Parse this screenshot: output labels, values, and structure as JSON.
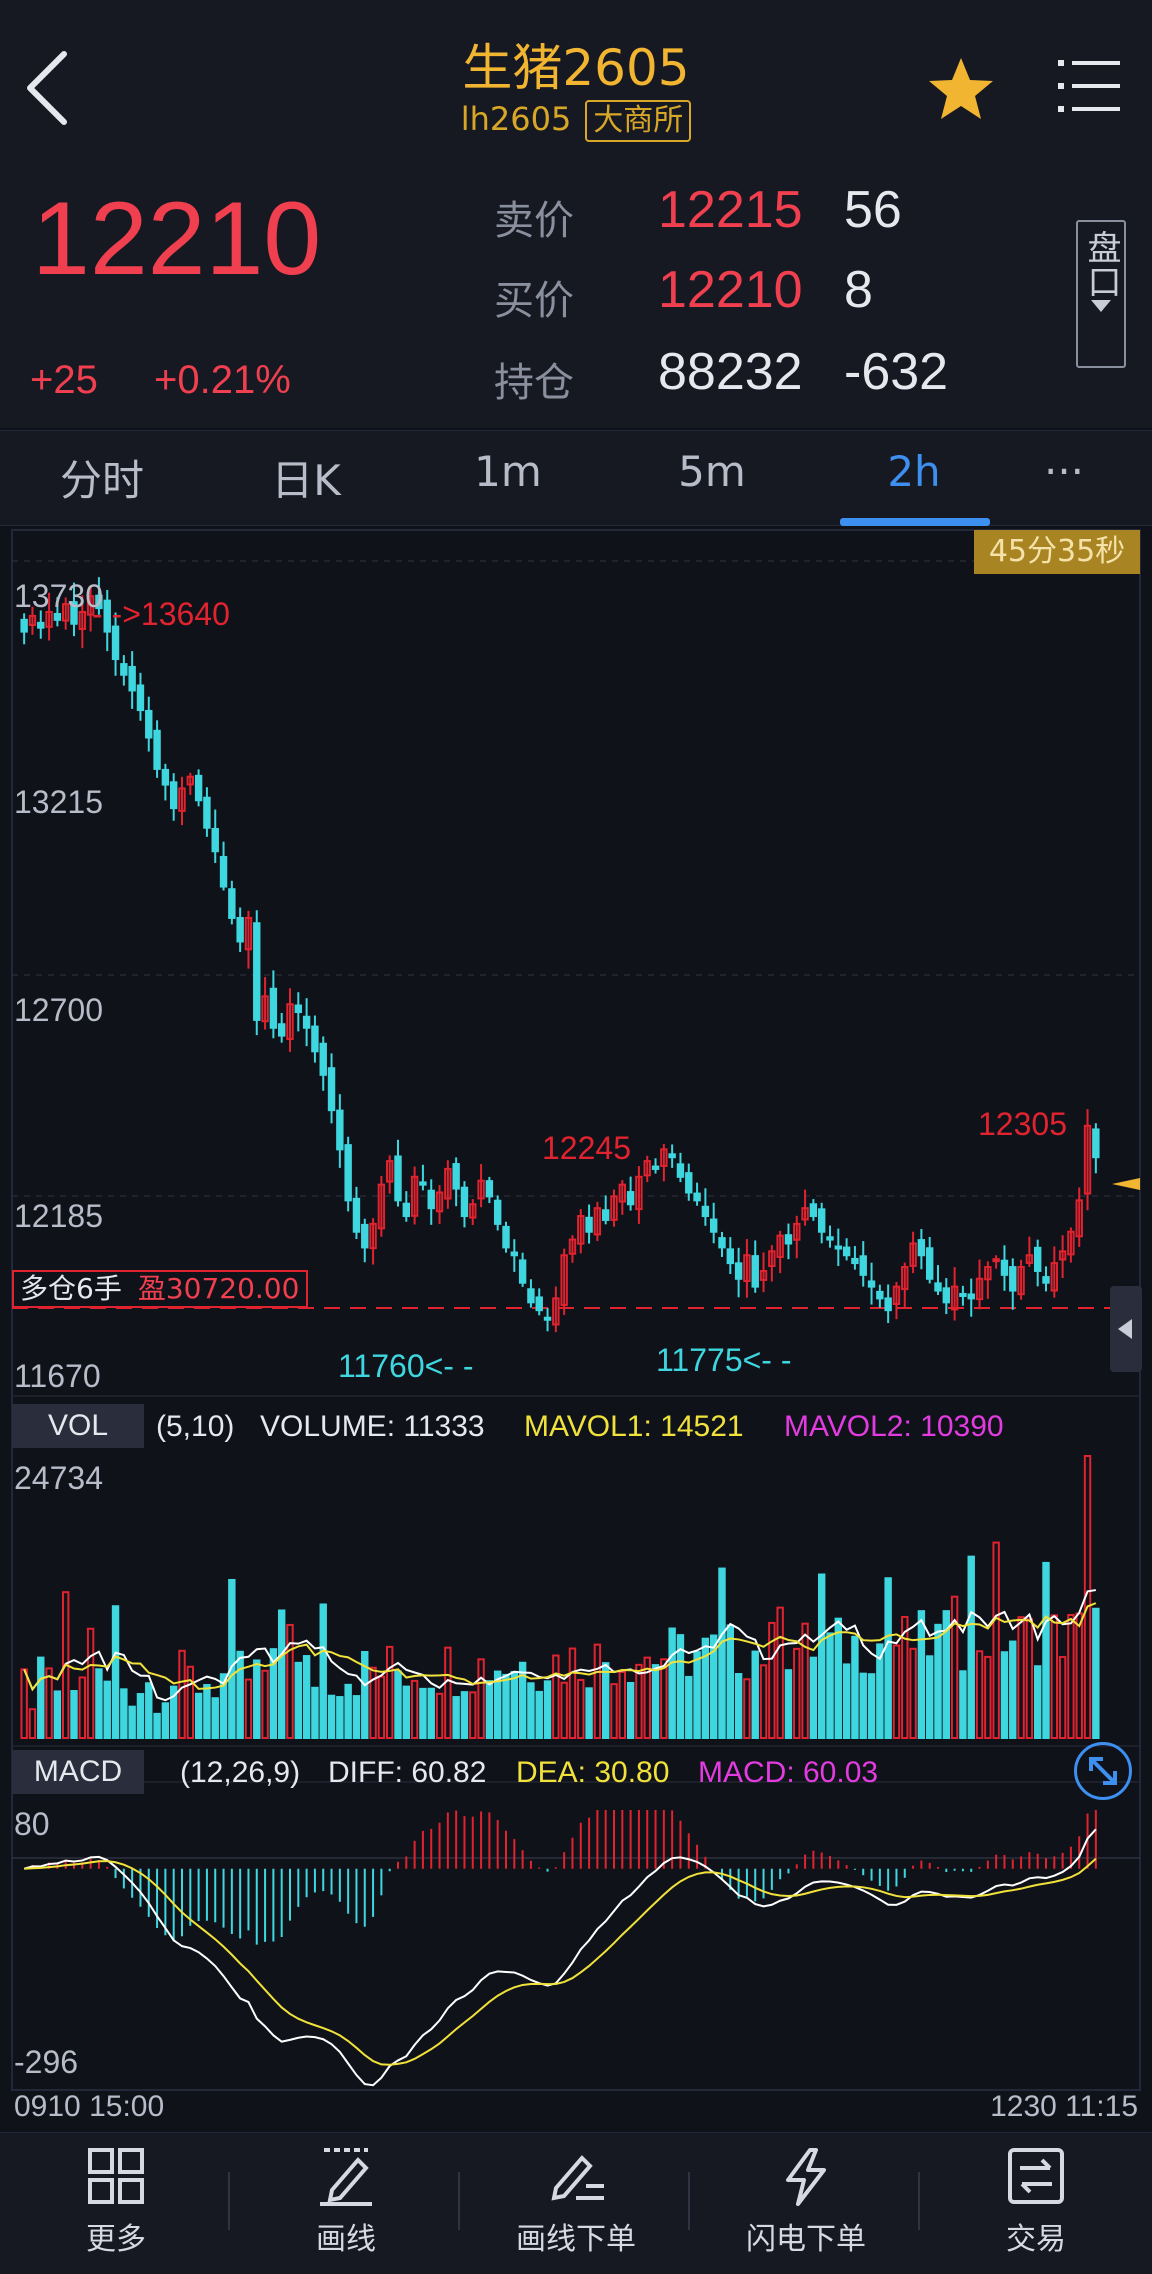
{
  "header": {
    "title": "生猪2605",
    "code": "lh2605",
    "exchange": "大商所"
  },
  "quote": {
    "last_price": "12210",
    "change": "+25",
    "change_pct": "+0.21%",
    "ask_label": "卖价",
    "ask_price": "12215",
    "ask_volume": "56",
    "bid_label": "买价",
    "bid_price": "12210",
    "bid_volume": "8",
    "oi_label": "持仓",
    "open_interest": "88232",
    "oi_change": "-632",
    "pankou_label": "盘口"
  },
  "tabs": [
    {
      "label": "分时"
    },
    {
      "label": "日K"
    },
    {
      "label": "1m"
    },
    {
      "label": "5m"
    },
    {
      "label": "2h"
    },
    {
      "label": "···"
    }
  ],
  "main_chart": {
    "countdown": "45分35秒",
    "price_axis": [
      "13730",
      "13215",
      "12700",
      "12185",
      "11670"
    ],
    "high_marker": "- ->13640",
    "label_12245": "12245",
    "label_12305": "12305",
    "low_marker_1": "11760<- -",
    "low_marker_2": "11775<- -",
    "position_label": "多仓6手",
    "position_pl": "盈30720.00"
  },
  "volume": {
    "tag": "VOL",
    "params": "(5,10)",
    "volume_text": "VOLUME: 11333",
    "mavol1_text": "MAVOL1: 14521",
    "mavol2_text": "MAVOL2: 10390",
    "axis_max": "24734"
  },
  "macd": {
    "tag": "MACD",
    "params": "(12,26,9)",
    "diff_text": "DIFF: 60.82",
    "dea_text": "DEA: 30.80",
    "macd_text": "MACD: 60.03",
    "axis_max": "80",
    "axis_min": "-296"
  },
  "time_axis": {
    "start": "0910 15:00",
    "end": "1230 11:15"
  },
  "nav": [
    {
      "label": "更多",
      "icon": "grid-icon"
    },
    {
      "label": "画线",
      "icon": "pen-line-icon"
    },
    {
      "label": "画线下单",
      "icon": "pen-order-icon"
    },
    {
      "label": "闪电下单",
      "icon": "lightning-icon"
    },
    {
      "label": "交易",
      "icon": "trade-icon"
    }
  ],
  "colors": {
    "up": "#e0232f",
    "down": "#3fd7df",
    "accent": "#3d8ff0",
    "gold": "#f2b531",
    "ma1": "#ffffff",
    "ma2": "#f0e23a",
    "macd_label": "#e23ce0"
  },
  "chart_data": {
    "type": "candlestick",
    "interval": "2h",
    "price_range": [
      11670,
      13730
    ],
    "closes": [
      13550,
      13590,
      13560,
      13600,
      13580,
      13620,
      13570,
      13600,
      13640,
      13610,
      13550,
      13480,
      13440,
      13400,
      13350,
      13280,
      13200,
      13160,
      13100,
      13150,
      13180,
      13120,
      13050,
      12990,
      12900,
      12820,
      12760,
      12820,
      12560,
      12620,
      12540,
      12520,
      12600,
      12580,
      12540,
      12480,
      12420,
      12330,
      12230,
      12100,
      12020,
      11980,
      12040,
      12140,
      12200,
      12100,
      12060,
      12160,
      12140,
      12080,
      12120,
      12180,
      12130,
      12060,
      12090,
      12150,
      12110,
      12040,
      11980,
      11960,
      11890,
      11840,
      11820,
      11800,
      11850,
      11960,
      12000,
      12060,
      12020,
      12080,
      12050,
      12110,
      12140,
      12090,
      12160,
      12200,
      12180,
      12230,
      12210,
      12160,
      12120,
      12100,
      12060,
      12020,
      11980,
      11940,
      11900,
      11960,
      11880,
      11920,
      11970,
      12010,
      11990,
      12040,
      12080,
      12060,
      12020,
      12000,
      11980,
      11960,
      11940,
      11910,
      11880,
      11850,
      11820,
      11880,
      11930,
      11990,
      11960,
      11900,
      11870,
      11840,
      11880,
      11860,
      11850,
      11900,
      11930,
      11950,
      11910,
      11870,
      11930,
      11960,
      11920,
      11890,
      11940,
      11970,
      12020,
      12100,
      12290,
      12210
    ],
    "volume_range": [
      0,
      24734
    ],
    "volume_last": 11333,
    "mavol1_last": 14521,
    "mavol2_last": 10390,
    "macd_range": [
      -296,
      80
    ],
    "diff_last": 60.82,
    "dea_last": 30.8,
    "macd_last": 60.03
  }
}
